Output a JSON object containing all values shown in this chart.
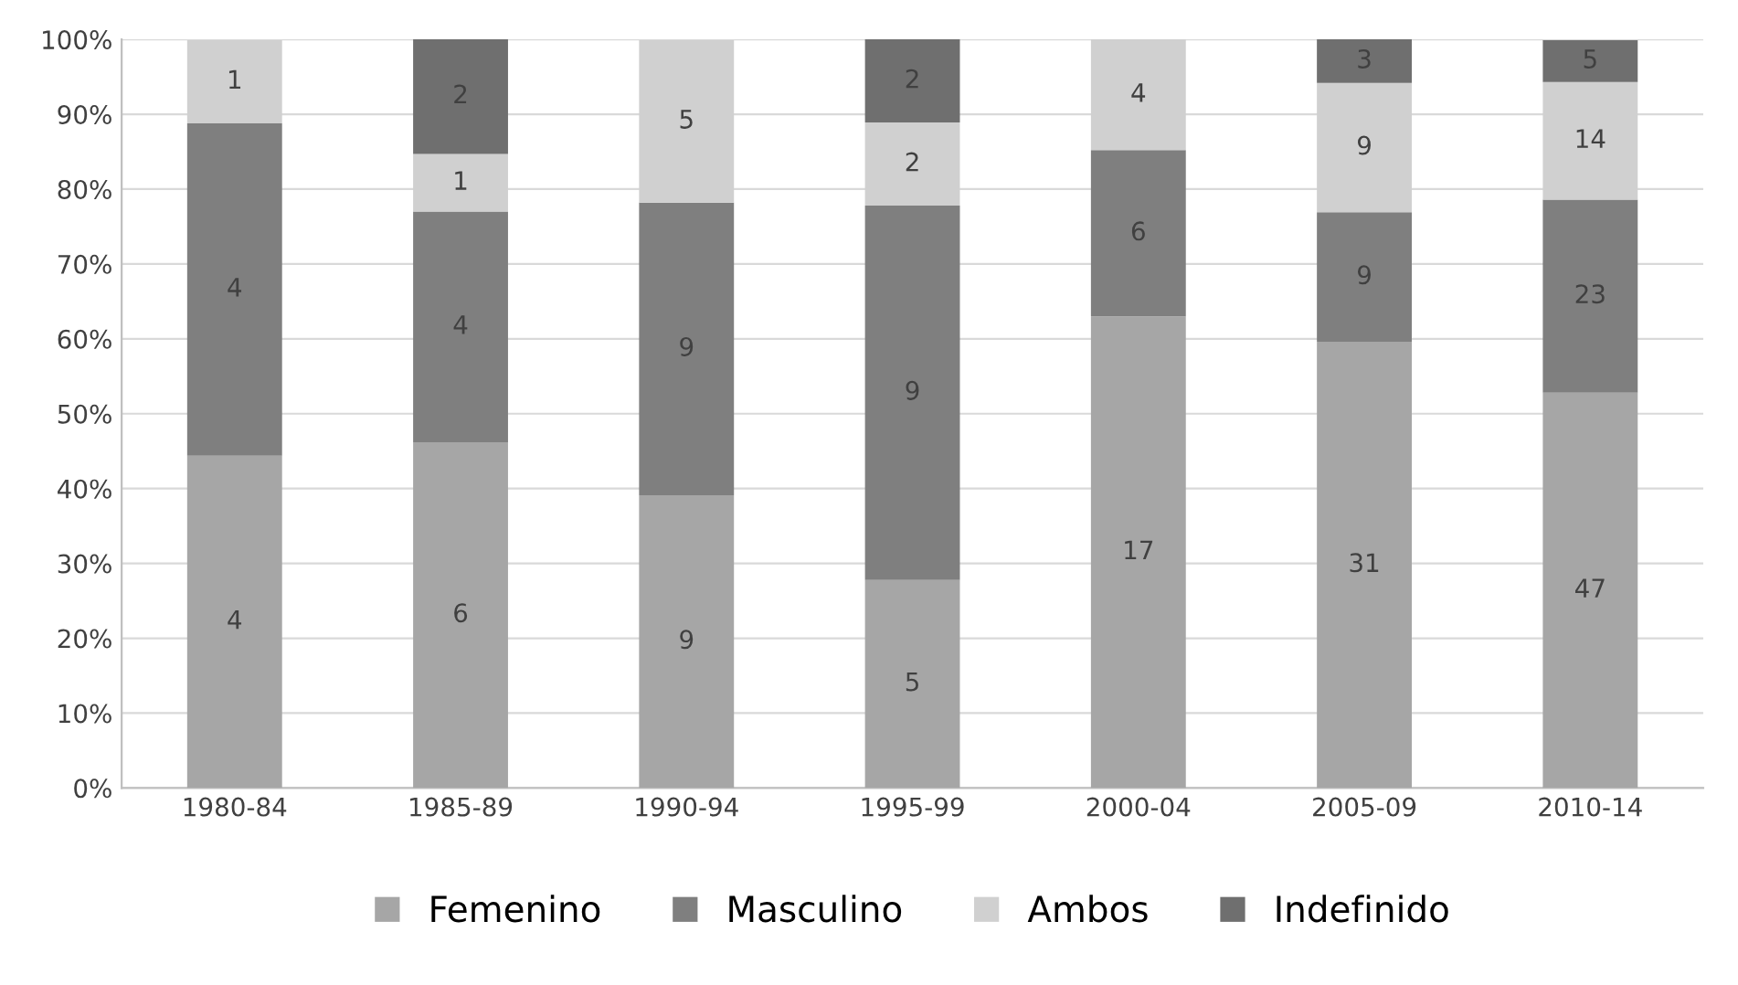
{
  "chart_data": {
    "type": "bar",
    "stacked": true,
    "categories": [
      "1980-84",
      "1985-89",
      "1990-94",
      "1995-99",
      "2000-04",
      "2005-09",
      "2010-14"
    ],
    "series": [
      {
        "name": "Femenino",
        "color": "#a6a6a6",
        "values": [
          44.4,
          46.2,
          39.1,
          27.8,
          63.0,
          59.6,
          52.8
        ]
      },
      {
        "name": "Masculino",
        "color": "#7f7f7f",
        "values": [
          44.4,
          30.8,
          39.1,
          50.0,
          22.2,
          17.3,
          25.8
        ]
      },
      {
        "name": "Ambos",
        "color": "#d0d0d0",
        "values": [
          11.1,
          7.7,
          21.7,
          11.1,
          14.8,
          17.3,
          15.7
        ]
      },
      {
        "name": "Indefinido",
        "color": "#6f6f6f",
        "values": [
          0,
          15.4,
          0,
          11.1,
          0,
          5.8,
          5.6
        ]
      }
    ],
    "annotations": [
      "4",
      "4",
      "1",
      "6",
      "4",
      "1",
      "2",
      "9",
      "9",
      "5",
      "5",
      "9",
      "2",
      "2",
      "17",
      "6",
      "4",
      "31",
      "9",
      "9",
      "3",
      "47",
      "23",
      "14",
      "5"
    ],
    "ylim": [
      0,
      100
    ],
    "yticks": [
      {
        "value": 0,
        "label": "0%"
      },
      {
        "value": 10,
        "label": "10%"
      },
      {
        "value": 20,
        "label": "20%"
      },
      {
        "value": 30,
        "label": "30%"
      },
      {
        "value": 40,
        "label": "40%"
      },
      {
        "value": 50,
        "label": "50%"
      },
      {
        "value": 60,
        "label": "60%"
      },
      {
        "value": 70,
        "label": "70%"
      },
      {
        "value": 80,
        "label": "80%"
      },
      {
        "value": 90,
        "label": "90%"
      },
      {
        "value": 100,
        "label": "100%"
      }
    ],
    "grid": "y",
    "legend": "bottom"
  }
}
